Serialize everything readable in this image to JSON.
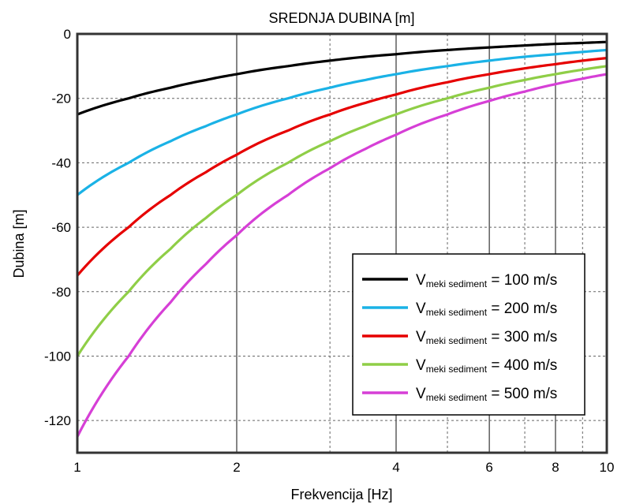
{
  "chart_data": {
    "type": "line",
    "title": "SREDNJA DUBINA [m]",
    "xlabel": "Frekvencija [Hz]",
    "ylabel": "Dubina [m]",
    "xscale": "log",
    "xlim": [
      1,
      10
    ],
    "ylim": [
      -130,
      0
    ],
    "x_ticks": [
      1,
      2,
      4,
      6,
      8,
      10
    ],
    "x_tick_labels": [
      "1",
      "2",
      "4",
      "6",
      "8",
      "10"
    ],
    "x_minor_grid": [
      3,
      5,
      7,
      9
    ],
    "y_ticks": [
      0,
      -20,
      -40,
      -60,
      -80,
      -100,
      -120
    ],
    "y_tick_labels": [
      "0",
      "-20",
      "-40",
      "-60",
      "-80",
      "-100",
      "-120"
    ],
    "grid": true,
    "legend_position": "lower-right",
    "x": [
      1,
      1.25,
      1.5,
      1.75,
      2,
      2.5,
      3,
      3.5,
      4,
      5,
      6,
      7,
      8,
      9,
      10
    ],
    "series": [
      {
        "name": "100 m/s",
        "legend_main": "V",
        "legend_sub": "meki sediment",
        "legend_rest": " = 100 m/s",
        "color": "#000000",
        "values": [
          -25.0,
          -20.0,
          -16.7,
          -14.3,
          -12.5,
          -10.0,
          -8.3,
          -7.1,
          -6.3,
          -5.0,
          -4.2,
          -3.6,
          -3.1,
          -2.8,
          -2.5
        ]
      },
      {
        "name": "200 m/s",
        "legend_main": "V",
        "legend_sub": "meki sediment",
        "legend_rest": " = 200 m/s",
        "color": "#1ab2e6",
        "values": [
          -50.0,
          -40.0,
          -33.3,
          -28.6,
          -25.0,
          -20.0,
          -16.7,
          -14.3,
          -12.5,
          -10.0,
          -8.3,
          -7.1,
          -6.3,
          -5.6,
          -5.0
        ]
      },
      {
        "name": "300 m/s",
        "legend_main": "V",
        "legend_sub": "meki sediment",
        "legend_rest": " = 300 m/s",
        "color": "#e60000",
        "values": [
          -75.0,
          -60.0,
          -50.0,
          -42.9,
          -37.5,
          -30.0,
          -25.0,
          -21.4,
          -18.8,
          -15.0,
          -12.5,
          -10.7,
          -9.4,
          -8.3,
          -7.5
        ]
      },
      {
        "name": "400 m/s",
        "legend_main": "V",
        "legend_sub": "meki sediment",
        "legend_rest": " = 400 m/s",
        "color": "#8fce47",
        "values": [
          -100.0,
          -80.0,
          -66.7,
          -57.1,
          -50.0,
          -40.0,
          -33.3,
          -28.6,
          -25.0,
          -20.0,
          -16.7,
          -14.3,
          -12.5,
          -11.1,
          -10.0
        ]
      },
      {
        "name": "500 m/s",
        "legend_main": "V",
        "legend_sub": "meki sediment",
        "legend_rest": " = 500 m/s",
        "color": "#d63fd6",
        "values": [
          -125.0,
          -100.0,
          -83.3,
          -71.4,
          -62.5,
          -50.0,
          -41.7,
          -35.7,
          -31.3,
          -25.0,
          -20.8,
          -17.9,
          -15.6,
          -13.9,
          -12.5
        ]
      }
    ]
  }
}
